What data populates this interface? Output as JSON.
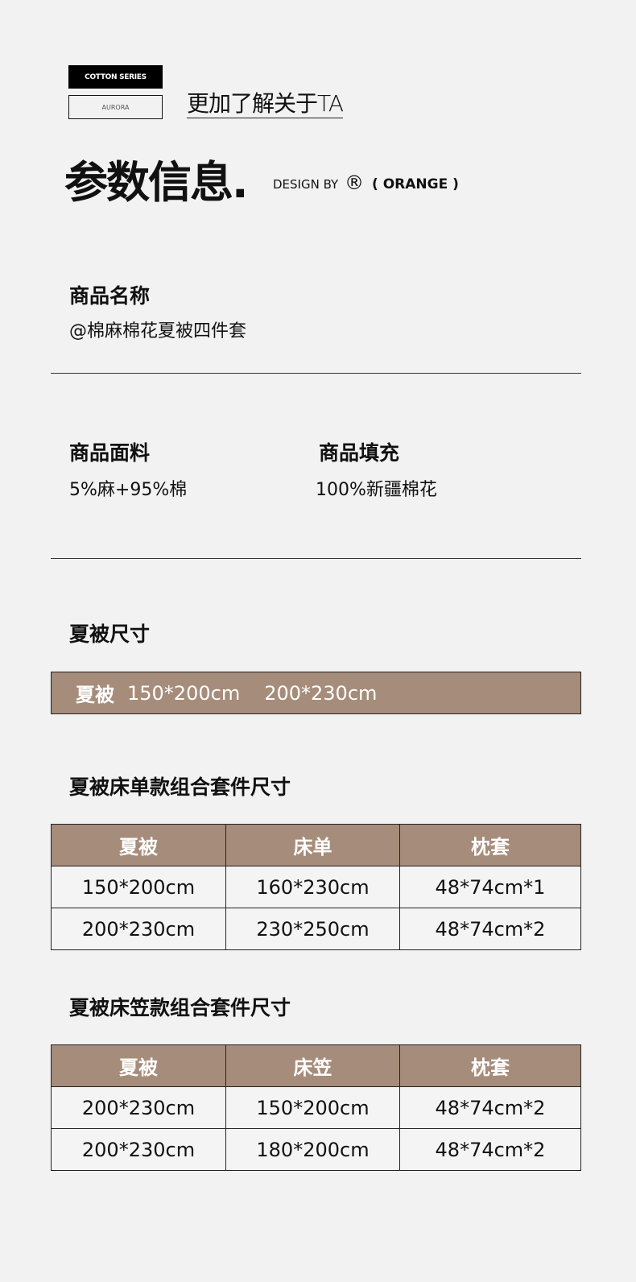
{
  "header": {
    "badge_top": "COTTON SERIES",
    "badge_bottom": "AURORA",
    "more_link": "更加了解关于TA",
    "title": "参数信息.",
    "design_by": "DESIGN BY",
    "registered": "®",
    "brand": "( ORANGE )"
  },
  "product": {
    "name_label": "商品名称",
    "name_value": "@棉麻棉花夏被四件套",
    "fabric_label": "商品面料",
    "fabric_value": "5%麻+95%棉",
    "filling_label": "商品填充",
    "filling_value": "100%新疆棉花"
  },
  "quilt_size": {
    "heading": "夏被尺寸",
    "label": "夏被",
    "sizes": [
      "150*200cm",
      "200*230cm"
    ]
  },
  "sheet_set": {
    "heading": "夏被床单款组合套件尺寸",
    "headers": [
      "夏被",
      "床单",
      "枕套"
    ],
    "rows": [
      [
        "150*200cm",
        "160*230cm",
        "48*74cm*1"
      ],
      [
        "200*230cm",
        "230*250cm",
        "48*74cm*2"
      ]
    ]
  },
  "fitted_set": {
    "heading": "夏被床笠款组合套件尺寸",
    "headers": [
      "夏被",
      "床笠",
      "枕套"
    ],
    "rows": [
      [
        "200*230cm",
        "150*200cm",
        "48*74cm*2"
      ],
      [
        "200*230cm",
        "180*200cm",
        "48*74cm*2"
      ]
    ]
  },
  "colors": {
    "accent": "#a68c7a",
    "background": "#f2f2f2"
  }
}
